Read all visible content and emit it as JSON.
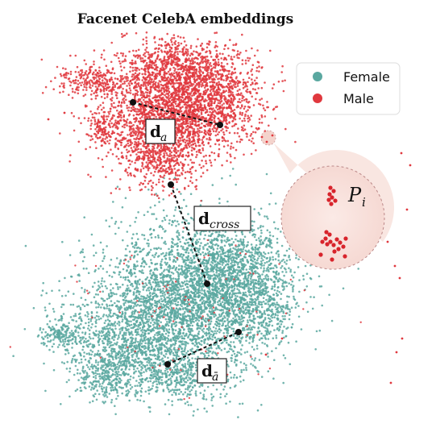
{
  "title": "Facenet CelebA embeddings",
  "colors": {
    "female": "#5aa8a0",
    "male": "#e0383e"
  },
  "legend": {
    "female_label": "Female",
    "male_label": "Male"
  },
  "labels": {
    "d_a": {
      "main": "d",
      "sub": "a"
    },
    "d_cross": {
      "main": "d",
      "sub": "cross"
    },
    "d_abar": {
      "main": "d",
      "sub": "ā"
    }
  },
  "inset": {
    "main": "P",
    "sub": "i"
  }
}
